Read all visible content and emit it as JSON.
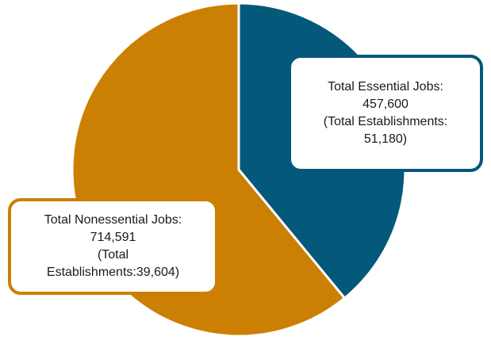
{
  "chart_data": {
    "type": "pie",
    "title": "",
    "colors": {
      "essential": "#04587a",
      "nonessential": "#cc8003",
      "separator": "#ffffff"
    },
    "slices": [
      {
        "key": "essential",
        "value": 457600,
        "label_lines": [
          "Total Essential Jobs:",
          "457,600",
          "(Total Establishments:",
          "51,180)"
        ]
      },
      {
        "key": "nonessential",
        "value": 714591,
        "label_lines": [
          "Total Nonessential Jobs:",
          "714,591",
          "(Total",
          "Establishments:39,604)"
        ]
      }
    ],
    "start_angle": "12 o'clock",
    "direction": "clockwise",
    "legend": "none",
    "data_labels": "callout boxes"
  }
}
